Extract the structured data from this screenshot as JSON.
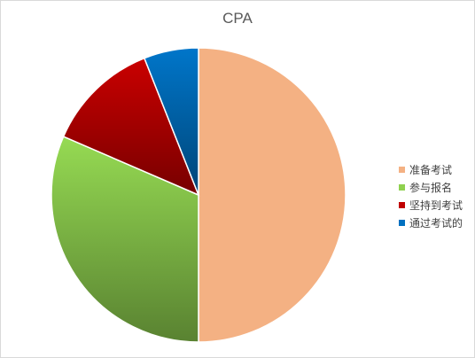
{
  "chart_data": {
    "type": "pie",
    "title": "CPA",
    "categories": [
      "准备考试",
      "参与报名",
      "坚持到考试",
      "通过考试的"
    ],
    "values": [
      50,
      31.5,
      12.5,
      6
    ],
    "colors": [
      "#f4b183",
      "#8fd14f",
      "#c00000",
      "#0070c0"
    ],
    "legend_position": "right",
    "start_angle": "12 o'clock, clockwise"
  }
}
